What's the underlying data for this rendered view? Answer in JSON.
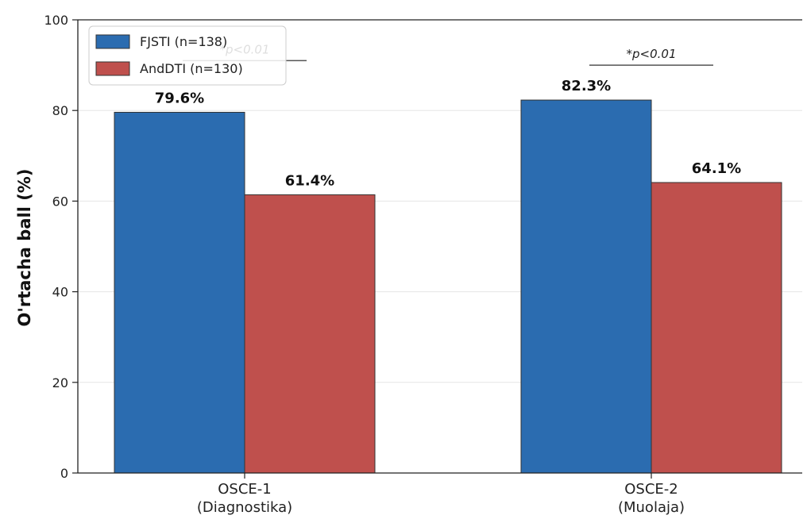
{
  "chart_data": {
    "type": "bar",
    "categories": [
      "OSCE-1\n(Diagnostika)",
      "OSCE-2\n(Muolaja)"
    ],
    "series": [
      {
        "name": "FJSTI (n=138)",
        "values": [
          79.6,
          82.3
        ],
        "color": "#2b6cb0"
      },
      {
        "name": "AndDTI (n=130)",
        "values": [
          61.4,
          64.1
        ],
        "color": "#bf504d"
      }
    ],
    "data_labels": [
      [
        "79.6%",
        "82.3%"
      ],
      [
        "61.4%",
        "64.1%"
      ]
    ],
    "ylabel": "O'rtacha ball (%)",
    "ylim": [
      0,
      100
    ],
    "yticks": [
      0,
      20,
      40,
      60,
      80,
      100
    ],
    "grid": "horizontal",
    "legend_position": "top-left",
    "annotations": [
      {
        "text": "*p<0.01",
        "category": 0,
        "y": 91
      },
      {
        "text": "*p<0.01",
        "category": 1,
        "y": 90
      }
    ]
  }
}
